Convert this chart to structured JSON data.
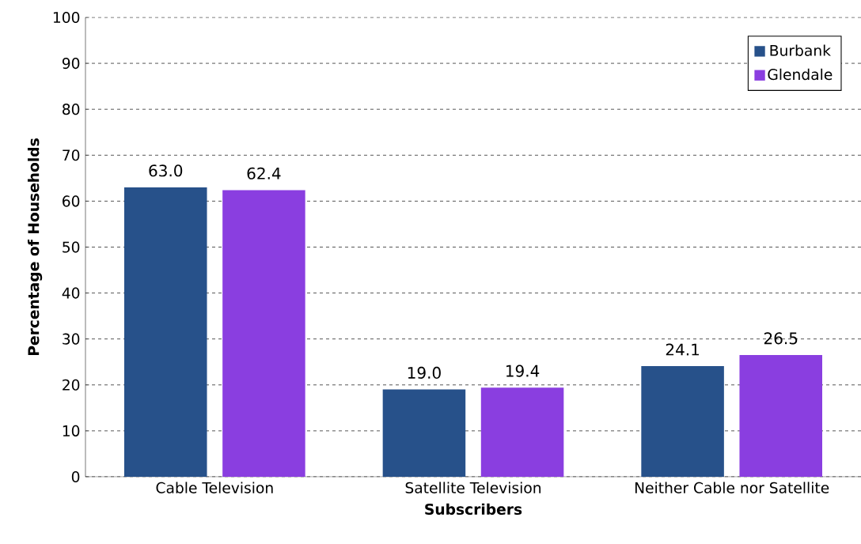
{
  "chart_data": {
    "type": "bar",
    "xlabel": "Subscribers",
    "ylabel": "Percentage of Households",
    "categories": [
      "Cable Television",
      "Satellite Television",
      "Neither Cable nor Satellite"
    ],
    "series": [
      {
        "name": "Burbank",
        "color": "#27518a",
        "values": [
          63.0,
          19.0,
          24.1
        ],
        "value_labels": [
          "63.0",
          "19.0",
          "24.1"
        ]
      },
      {
        "name": "Glendale",
        "color": "#8a3ee0",
        "values": [
          62.4,
          19.4,
          26.5
        ],
        "value_labels": [
          "62.4",
          "19.4",
          "26.5"
        ]
      }
    ],
    "ylim": [
      0,
      100
    ],
    "yticks": [
      0,
      10,
      20,
      30,
      40,
      50,
      60,
      70,
      80,
      90,
      100
    ],
    "grid": "y",
    "legend": "top right"
  }
}
